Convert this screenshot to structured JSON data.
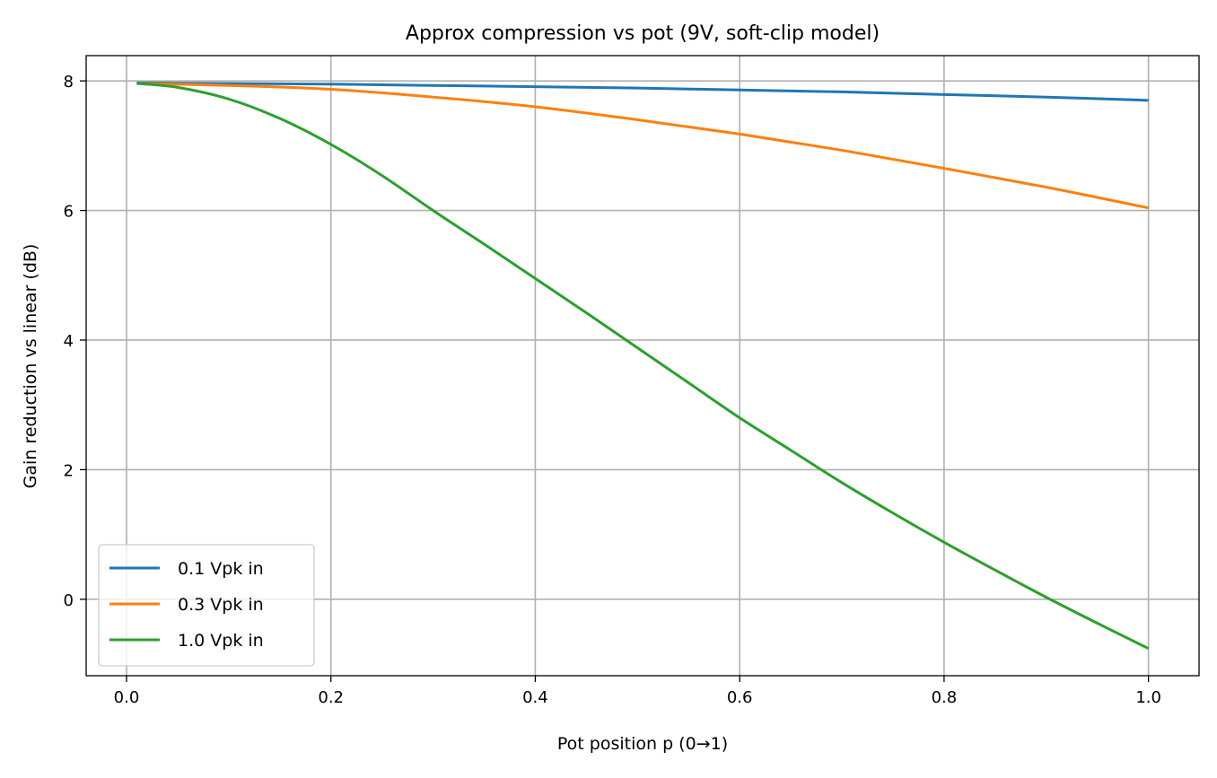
{
  "chart_data": {
    "type": "line",
    "title": "Approx compression vs pot (9V, soft-clip model)",
    "xlabel": "Pot position p (0→1)",
    "ylabel": "Gain reduction vs linear (dB)",
    "xlim": [
      -0.0395,
      1.0495
    ],
    "ylim": [
      -1.18,
      8.39
    ],
    "xticks": [
      0.0,
      0.2,
      0.4,
      0.6,
      0.8,
      1.0
    ],
    "xtick_labels": [
      "0.0",
      "0.2",
      "0.4",
      "0.6",
      "0.8",
      "1.0"
    ],
    "yticks": [
      0,
      2,
      4,
      6,
      8
    ],
    "ytick_labels": [
      "0",
      "2",
      "4",
      "6",
      "8"
    ],
    "grid": true,
    "legend_placement": "lower-left",
    "series": [
      {
        "name": "0.1 Vpk in",
        "color": "#1f77b4",
        "x": [
          0.01,
          0.1,
          0.2,
          0.3,
          0.4,
          0.5,
          0.6,
          0.7,
          0.8,
          0.9,
          1.0
        ],
        "y": [
          7.97,
          7.96,
          7.95,
          7.93,
          7.91,
          7.89,
          7.86,
          7.83,
          7.79,
          7.75,
          7.7
        ]
      },
      {
        "name": "0.3 Vpk in",
        "color": "#ff7f0e",
        "x": [
          0.01,
          0.1,
          0.2,
          0.3,
          0.4,
          0.5,
          0.6,
          0.7,
          0.8,
          0.9,
          1.0
        ],
        "y": [
          7.96,
          7.93,
          7.87,
          7.75,
          7.6,
          7.4,
          7.18,
          6.93,
          6.65,
          6.36,
          6.04
        ]
      },
      {
        "name": "1.0 Vpk in",
        "color": "#2ca02c",
        "x": [
          0.01,
          0.05,
          0.1,
          0.15,
          0.2,
          0.25,
          0.3,
          0.35,
          0.4,
          0.45,
          0.5,
          0.55,
          0.6,
          0.65,
          0.7,
          0.75,
          0.8,
          0.85,
          0.9,
          0.95,
          1.0
        ],
        "y": [
          7.96,
          7.9,
          7.72,
          7.42,
          7.02,
          6.54,
          6.0,
          5.48,
          4.95,
          4.42,
          3.88,
          3.34,
          2.8,
          2.3,
          1.8,
          1.33,
          0.88,
          0.45,
          0.03,
          -0.37,
          -0.76
        ]
      }
    ]
  }
}
